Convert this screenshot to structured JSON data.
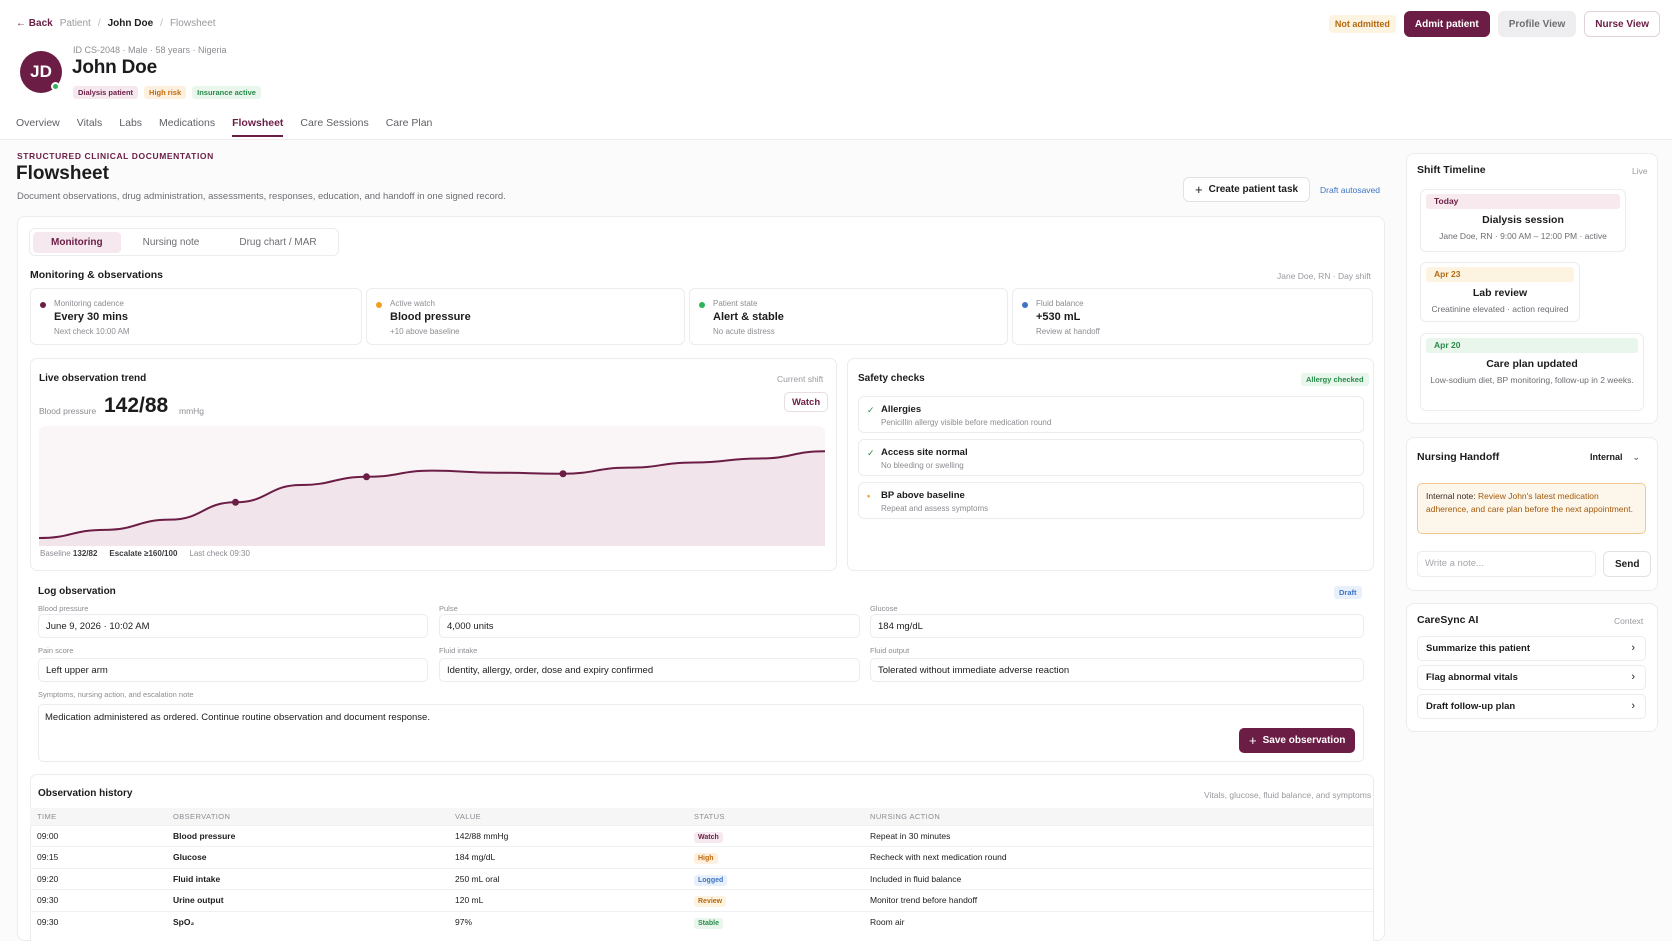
{
  "header": {
    "back": "Back",
    "breadcrumb": [
      "Patient",
      "John Doe",
      "Flowsheet"
    ],
    "patient_meta": "ID CS-2048 · Male · 58 years · Nigeria",
    "initials": "JD",
    "patient_name": "John Doe",
    "tags": [
      "Dialysis patient",
      "High risk",
      "Insurance active"
    ],
    "status": "Not admitted",
    "admit_label": "Admit patient",
    "profile_view_label": "Profile View",
    "nurse_view_label": "Nurse View"
  },
  "tabs": [
    "Overview",
    "Vitals",
    "Labs",
    "Medications",
    "Flowsheet",
    "Care Sessions",
    "Care Plan"
  ],
  "page": {
    "eyebrow": "STRUCTURED CLINICAL DOCUMENTATION",
    "title": "Flowsheet",
    "subtitle": "Document observations, drug administration, assessments, responses, education, and handoff in one signed record.",
    "create_task_label": "Create patient task",
    "autosaved": "Draft autosaved"
  },
  "segments": [
    "Monitoring",
    "Nursing note",
    "Drug chart / MAR"
  ],
  "monitoring": {
    "title": "Monitoring & observations",
    "shift_note": "Jane Doe, RN · Day shift",
    "tiles": [
      {
        "label": "Monitoring cadence",
        "value": "Every 30 mins",
        "sub": "Next check 10:00 AM",
        "color": "#6b1d45"
      },
      {
        "label": "Active watch",
        "value": "Blood pressure",
        "sub": "+10 above baseline",
        "color": "#f0a024"
      },
      {
        "label": "Patient state",
        "value": "Alert & stable",
        "sub": "No acute distress",
        "color": "#2fb35a"
      },
      {
        "label": "Fluid balance",
        "value": "+530 mL",
        "sub": "Review at handoff",
        "color": "#3f74c4"
      }
    ]
  },
  "trend": {
    "title": "Live observation trend",
    "context": "Current shift",
    "watch_label": "Watch",
    "metric_label": "Blood pressure",
    "value": "142/88",
    "unit": "mmHg",
    "baseline_label": "Baseline",
    "baseline_value": "132/82",
    "escalate_label": "Escalate",
    "escalate_value": "≥160/100",
    "last_check": "Last check 09:30"
  },
  "safety": {
    "title": "Safety checks",
    "badge": "Allergy checked",
    "items": [
      {
        "icon": "check-icon",
        "title": "Allergies",
        "desc": "Penicillin allergy visible before medication round",
        "color": "#2a8a4a",
        "glyph": "✓"
      },
      {
        "icon": "check-icon",
        "title": "Access site normal",
        "desc": "No bleeding or swelling",
        "color": "#2a8a4a",
        "glyph": "✓"
      },
      {
        "icon": "dot-icon",
        "title": "BP above baseline",
        "desc": "Repeat and assess symptoms",
        "color": "#f0a024",
        "glyph": "•"
      }
    ]
  },
  "log": {
    "title": "Log observation",
    "badge": "Draft",
    "fields": [
      {
        "label": "Blood pressure",
        "value": "June 9, 2026 · 10:02 AM"
      },
      {
        "label": "Pulse",
        "value": "4,000 units"
      },
      {
        "label": "Glucose",
        "value": "184 mg/dL"
      },
      {
        "label": "Pain score",
        "value": "Left upper arm"
      },
      {
        "label": "Fluid intake",
        "value": "Identity, allergy, order, dose and expiry confirmed"
      },
      {
        "label": "Fluid output",
        "value": "Tolerated without immediate adverse reaction"
      }
    ],
    "note_label": "Symptoms, nursing action, and escalation note",
    "note_value": "Medication administered as ordered. Continue routine observation and document response.",
    "save_label": "Save observation"
  },
  "history": {
    "title": "Observation history",
    "context": "Vitals, glucose, fluid balance, and symptoms",
    "columns": [
      "TIME",
      "OBSERVATION",
      "VALUE",
      "STATUS",
      "NURSING ACTION"
    ],
    "rows": [
      {
        "time": "09:00",
        "obs": "Blood pressure",
        "value": "142/88 mmHg",
        "status": "Watch",
        "action": "Repeat in 30 minutes"
      },
      {
        "time": "09:15",
        "obs": "Glucose",
        "value": "184 mg/dL",
        "status": "High",
        "action": "Recheck with next medication round"
      },
      {
        "time": "09:20",
        "obs": "Fluid intake",
        "value": "250 mL oral",
        "status": "Logged",
        "action": "Included in fluid balance"
      },
      {
        "time": "09:30",
        "obs": "Urine output",
        "value": "120 mL",
        "status": "Review",
        "action": "Monitor trend before handoff"
      },
      {
        "time": "09:30",
        "obs": "SpO₂",
        "value": "97%",
        "status": "Stable",
        "action": "Room air"
      }
    ]
  },
  "timeline": {
    "title": "Shift Timeline",
    "context": "Live",
    "items": [
      {
        "when": "Today",
        "title": "Dialysis session",
        "desc": "Jane Doe, RN · 9:00 AM – 12:00 PM · active"
      },
      {
        "when": "Apr 23",
        "title": "Lab review",
        "desc": "Creatinine elevated · action required"
      },
      {
        "when": "Apr 20",
        "title": "Care plan updated",
        "desc": "Low-sodium diet, BP monitoring, follow-up in 2 weeks."
      }
    ]
  },
  "handoff": {
    "title": "Nursing Handoff",
    "visibility": "Internal",
    "note_prefix": "Internal note:",
    "note_text": "Review John's latest medication adherence, and care plan before the next appointment.",
    "input_placeholder": "Write a note...",
    "send_label": "Send"
  },
  "ai": {
    "title": "CareSync AI",
    "context": "Context",
    "items": [
      "Summarize this patient",
      "Flag abnormal vitals",
      "Draft follow-up plan"
    ]
  },
  "chart_data": {
    "type": "line",
    "title": "",
    "xlabel": "",
    "ylabel": "",
    "series": [
      {
        "values": [
          0.0,
          0.08,
          0.18,
          0.35,
          0.52,
          0.6,
          0.66,
          0.64,
          0.63,
          0.69,
          0.74,
          0.78,
          0.85
        ]
      }
    ],
    "markers_at": [
      3,
      5,
      8
    ],
    "ylim": [
      0,
      1
    ],
    "grid": false,
    "line_color": "#6b1d45",
    "fill_color": "#f1e4ea"
  }
}
